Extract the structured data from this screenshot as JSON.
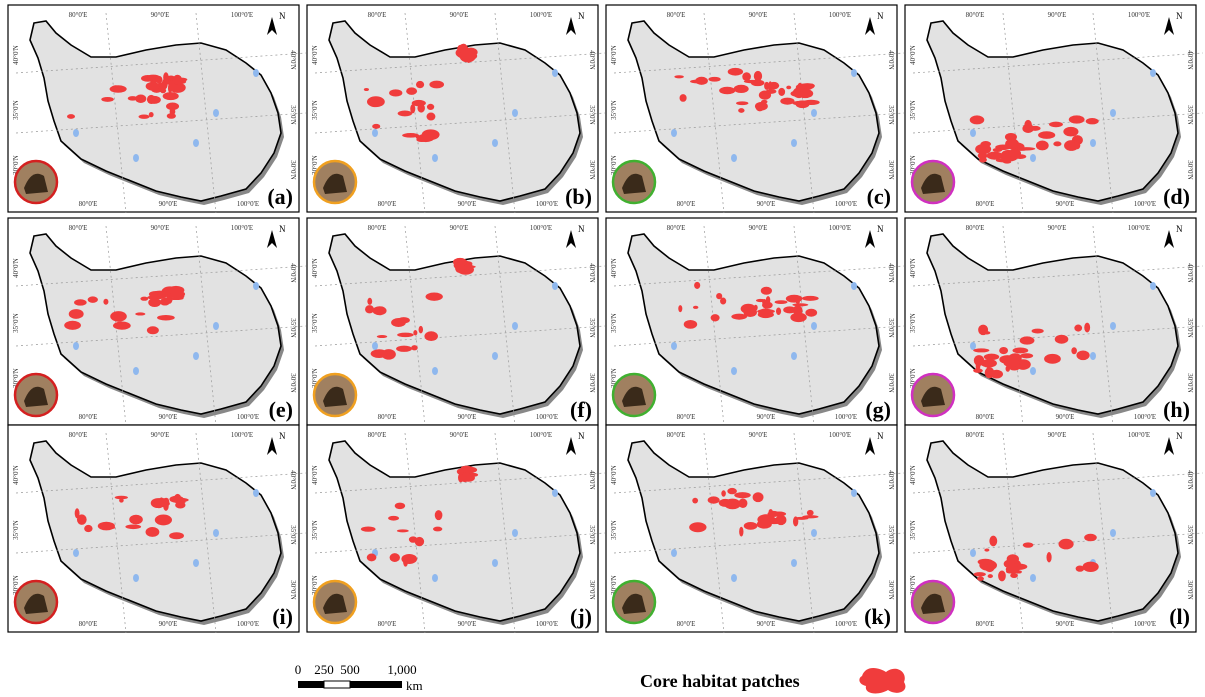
{
  "panels": [
    {
      "label": "(a)"
    },
    {
      "label": "(b)"
    },
    {
      "label": "(c)"
    },
    {
      "label": "(d)"
    },
    {
      "label": "(e)"
    },
    {
      "label": "(f)"
    },
    {
      "label": "(g)"
    },
    {
      "label": "(h)"
    },
    {
      "label": "(i)"
    },
    {
      "label": "(j)"
    },
    {
      "label": "(k)"
    },
    {
      "label": "(l)"
    }
  ],
  "graticule": {
    "lon": [
      "80°0'E",
      "90°0'E",
      "100°0'E"
    ],
    "lat": [
      "40°0'N",
      "35°0'N",
      "30°0'N"
    ]
  },
  "north": "N",
  "scale_bar": {
    "labels": [
      "0",
      "250",
      "500",
      "1,000"
    ],
    "unit": "km"
  },
  "legend": {
    "label": "Core habitat patches"
  }
}
